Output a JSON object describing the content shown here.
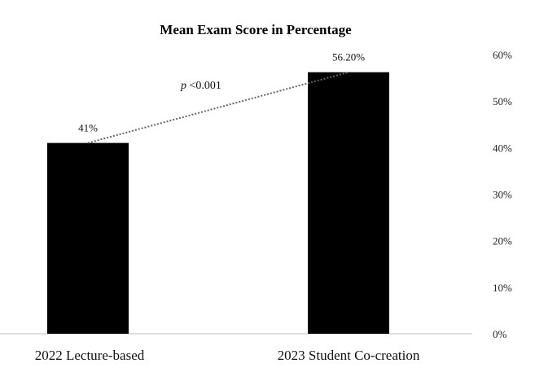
{
  "chart_data": {
    "type": "bar",
    "title": "Mean Exam Score in Percentage",
    "categories": [
      "2022 Lecture-based",
      "2023 Student Co-creation"
    ],
    "values": [
      41,
      56.2
    ],
    "data_labels": [
      "41%",
      "56.20%"
    ],
    "ylim": [
      0,
      60
    ],
    "yticks": [
      0,
      10,
      20,
      30,
      40,
      50,
      60
    ],
    "ytick_labels": [
      "0%",
      "10%",
      "20%",
      "30%",
      "40%",
      "50%",
      "60%"
    ],
    "y_axis_side": "right",
    "grid": false,
    "bar_color": "#000000",
    "annotation": {
      "prefix": "p",
      "text": " <0.001"
    },
    "connector": "dotted line between bar tops"
  }
}
